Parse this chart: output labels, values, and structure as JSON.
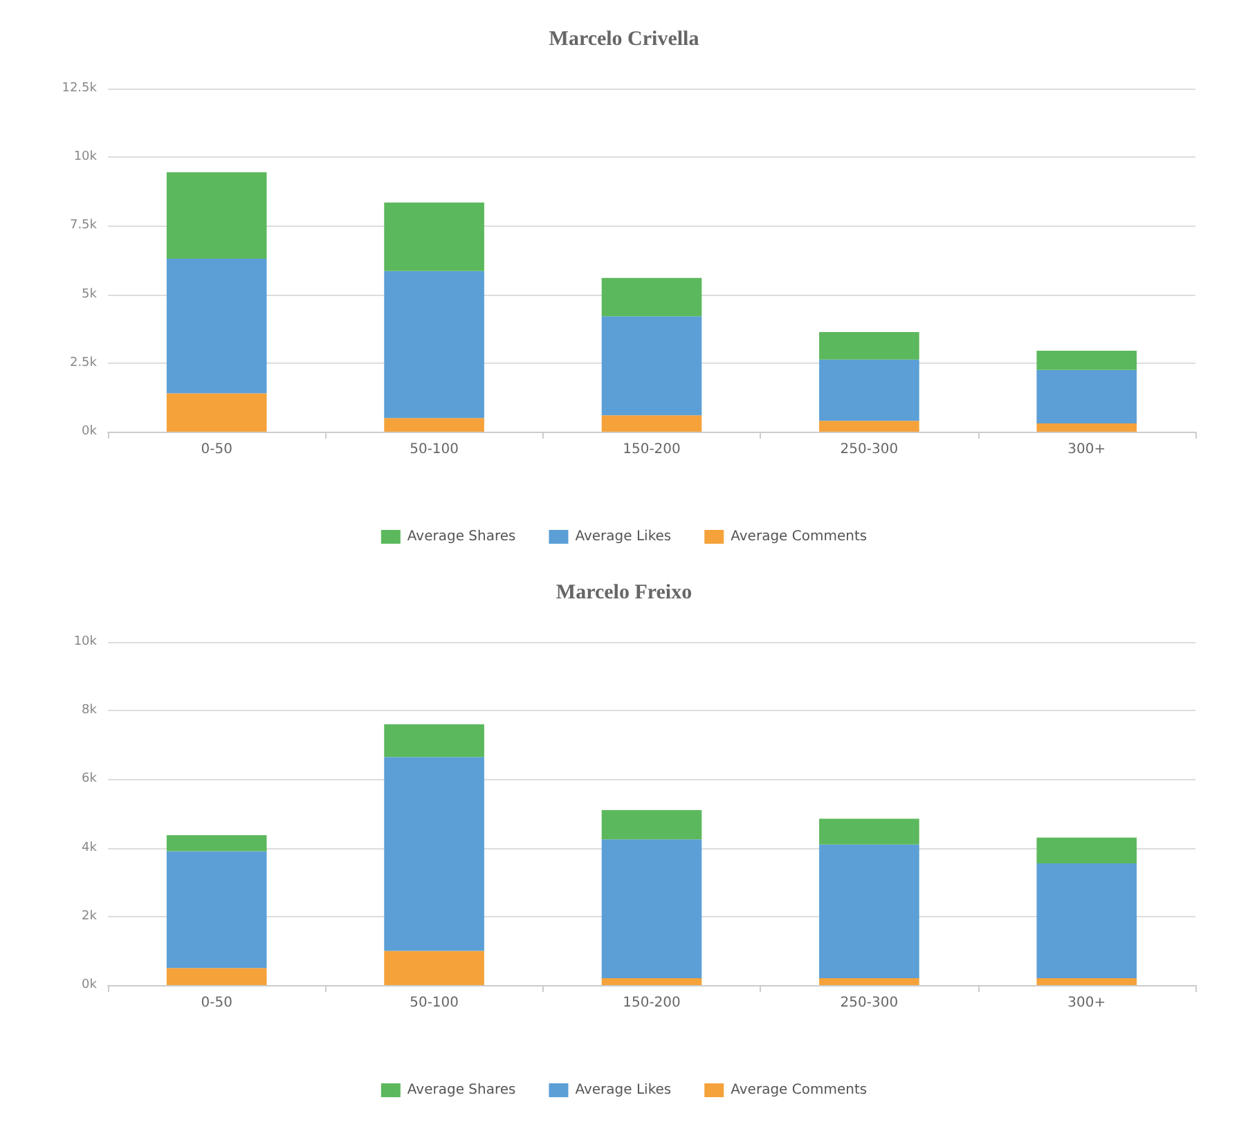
{
  "chart_data": [
    {
      "type": "bar",
      "title": "Marcelo Crivella",
      "stacked": true,
      "categories": [
        "0-50",
        "50-100",
        "150-200",
        "250-300",
        "300+"
      ],
      "series": [
        {
          "name": "Average Comments",
          "color": "#f5a23a",
          "values": [
            1400,
            500,
            600,
            400,
            300
          ]
        },
        {
          "name": "Average Likes",
          "color": "#5b9fd6",
          "values": [
            4900,
            5350,
            3600,
            2230,
            1950
          ]
        },
        {
          "name": "Average Shares",
          "color": "#5cb85c",
          "values": [
            3150,
            2500,
            1400,
            1000,
            700
          ]
        }
      ],
      "ylim": [
        0,
        12500
      ],
      "yticks": [
        {
          "value": 0,
          "label": "0k"
        },
        {
          "value": 2500,
          "label": "2.5k"
        },
        {
          "value": 5000,
          "label": "5k"
        },
        {
          "value": 7500,
          "label": "7.5k"
        },
        {
          "value": 10000,
          "label": "10k"
        },
        {
          "value": 12500,
          "label": "12.5k"
        }
      ],
      "grid": "y",
      "legend": "bottom"
    },
    {
      "type": "bar",
      "title": "Marcelo Freixo",
      "stacked": true,
      "categories": [
        "0-50",
        "50-100",
        "150-200",
        "250-300",
        "300+"
      ],
      "series": [
        {
          "name": "Average Comments",
          "color": "#f5a23a",
          "values": [
            500,
            1000,
            200,
            200,
            200
          ]
        },
        {
          "name": "Average Likes",
          "color": "#5b9fd6",
          "values": [
            3400,
            5650,
            4050,
            3900,
            3350
          ]
        },
        {
          "name": "Average Shares",
          "color": "#5cb85c",
          "values": [
            470,
            950,
            850,
            750,
            750
          ]
        }
      ],
      "ylim": [
        0,
        10000
      ],
      "yticks": [
        {
          "value": 0,
          "label": "0k"
        },
        {
          "value": 2000,
          "label": "2k"
        },
        {
          "value": 4000,
          "label": "4k"
        },
        {
          "value": 6000,
          "label": "6k"
        },
        {
          "value": 8000,
          "label": "8k"
        },
        {
          "value": 10000,
          "label": "10k"
        }
      ],
      "grid": "y",
      "legend": "bottom"
    }
  ]
}
